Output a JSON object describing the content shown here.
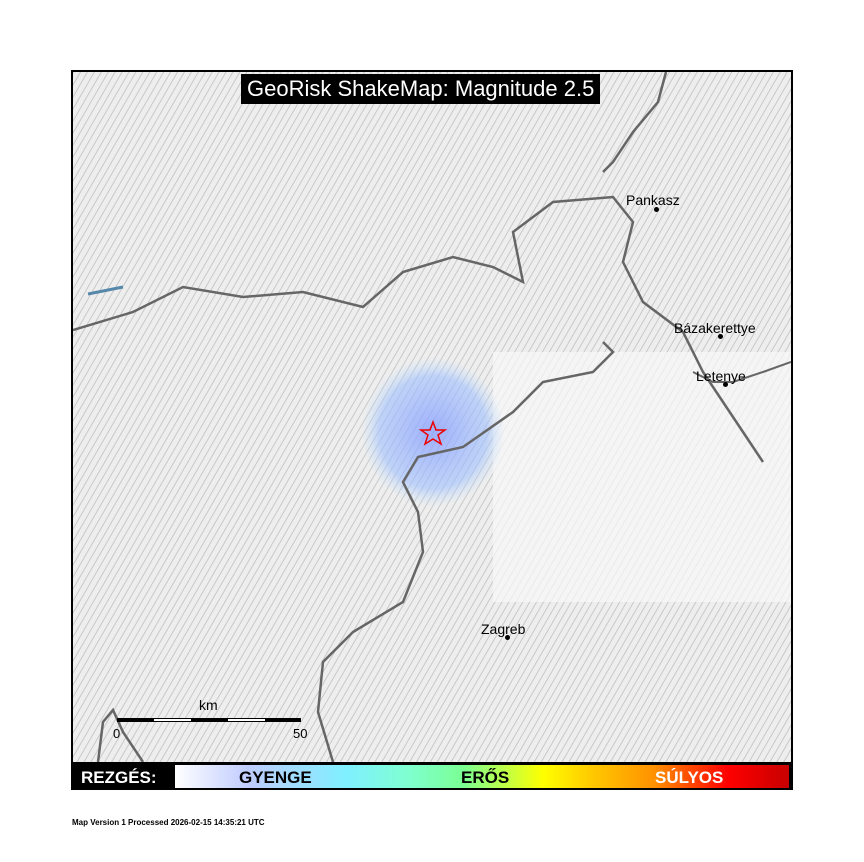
{
  "title": "GeoRisk ShakeMap: Magnitude 2.5",
  "cities": [
    {
      "name": "Pankasz"
    },
    {
      "name": "Bázakerettye"
    },
    {
      "name": "Letenye"
    },
    {
      "name": "Zagreb"
    }
  ],
  "epicenter_icon": "star-icon",
  "scale": {
    "unit": "km",
    "start": "0",
    "end": "50"
  },
  "legend": {
    "label": "REZGÉS:",
    "levels": [
      "GYENGE",
      "ERŐS",
      "SÚLYOS"
    ],
    "colors": [
      "#ffffff",
      "#bfccff",
      "#7ff0ff",
      "#7aff93",
      "#ffff00",
      "#ff9100",
      "#ff0000",
      "#c80000"
    ]
  },
  "footer": "Map Version 1 Processed 2026-02-15 14:35:21 UTC"
}
